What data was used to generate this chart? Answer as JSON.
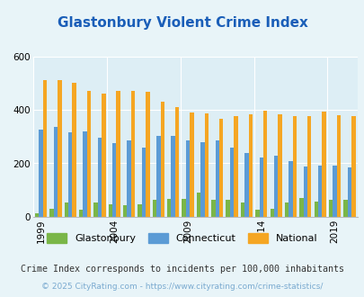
{
  "title": "Glastonbury Violent Crime Index",
  "title_color": "#1a5eb8",
  "background_color": "#e8f4f8",
  "plot_bg_color": "#ddeef5",
  "years": [
    1999,
    2000,
    2001,
    2002,
    2003,
    2004,
    2005,
    2006,
    2007,
    2008,
    2009,
    2010,
    2011,
    2012,
    2013,
    2014,
    2015,
    2016,
    2017,
    2018,
    2019,
    2020
  ],
  "glastonbury": [
    12,
    30,
    55,
    28,
    55,
    48,
    42,
    48,
    62,
    68,
    68,
    90,
    65,
    62,
    55,
    25,
    30,
    55,
    70,
    58,
    62,
    62
  ],
  "connecticut": [
    325,
    335,
    315,
    320,
    295,
    275,
    285,
    258,
    302,
    302,
    285,
    278,
    285,
    258,
    238,
    222,
    228,
    208,
    188,
    192,
    192,
    185
  ],
  "national": [
    510,
    510,
    500,
    470,
    460,
    470,
    470,
    468,
    430,
    410,
    390,
    388,
    365,
    378,
    382,
    398,
    382,
    378,
    378,
    395,
    380,
    378
  ],
  "glastonbury_color": "#7ab648",
  "connecticut_color": "#5b9bd5",
  "national_color": "#f5a623",
  "ylim": [
    0,
    600
  ],
  "yticks": [
    0,
    200,
    400,
    600
  ],
  "tick_years": [
    1999,
    2004,
    2009,
    2014,
    2019
  ],
  "subtitle": "Crime Index corresponds to incidents per 100,000 inhabitants",
  "footer": "© 2025 CityRating.com - https://www.cityrating.com/crime-statistics/",
  "legend_labels": [
    "Glastonbury",
    "Connecticut",
    "National"
  ]
}
